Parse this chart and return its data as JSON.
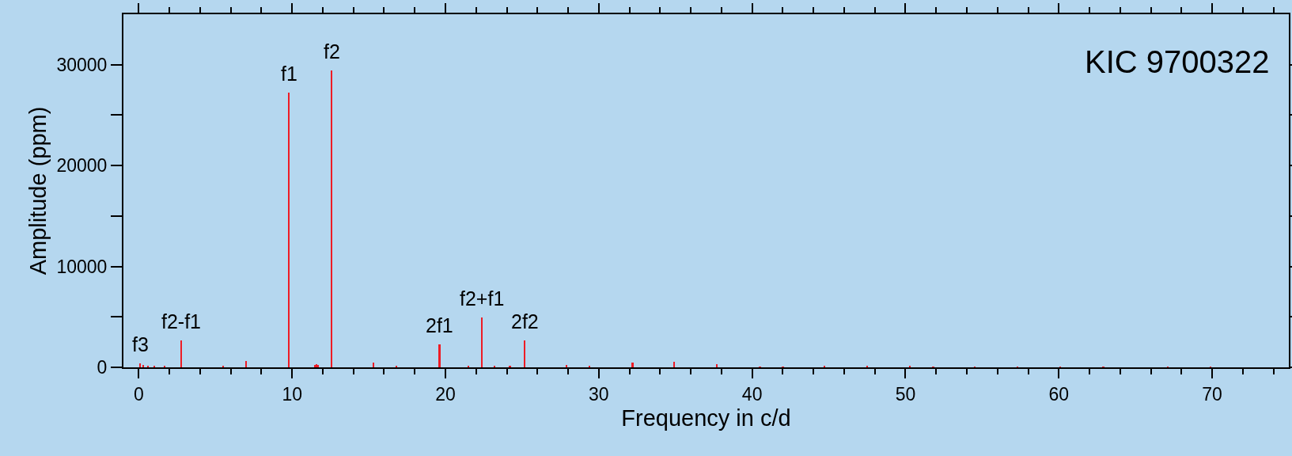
{
  "chart_data": {
    "type": "bar",
    "xlabel": "Frequency in c/d",
    "ylabel": "Amplitude (ppm)",
    "x": [
      0.1,
      0.3,
      0.6,
      1.0,
      1.7,
      2.76,
      5.5,
      7.0,
      9.79,
      11.5,
      11.6,
      11.7,
      12.58,
      15.3,
      16.8,
      19.62,
      21.5,
      22.38,
      23.2,
      24.2,
      25.17,
      27.9,
      29.4,
      32.2,
      34.9,
      37.7,
      40.5,
      42.0,
      44.7,
      47.5,
      50.3,
      51.8,
      54.5,
      57.3,
      60.1,
      62.9,
      67.1,
      69.9
    ],
    "series": [
      {
        "color": "#ee1c25",
        "values": [
          400,
          250,
          150,
          100,
          80,
          2640,
          100,
          600,
          27250,
          250,
          350,
          250,
          29450,
          500,
          100,
          2260,
          100,
          4920,
          100,
          150,
          2690,
          200,
          150,
          450,
          550,
          350,
          50,
          50,
          150,
          100,
          80,
          50,
          60,
          60,
          60,
          50,
          50,
          50
        ]
      }
    ],
    "xlim": [
      -1,
      75
    ],
    "xticks": [
      {
        "value": 0,
        "label": "0"
      },
      {
        "value": 2,
        "label": null
      },
      {
        "value": 4,
        "label": null
      },
      {
        "value": 6,
        "label": null
      },
      {
        "value": 8,
        "label": null
      },
      {
        "value": 10,
        "label": "10"
      },
      {
        "value": 12,
        "label": null
      },
      {
        "value": 14,
        "label": null
      },
      {
        "value": 16,
        "label": null
      },
      {
        "value": 18,
        "label": null
      },
      {
        "value": 20,
        "label": "20"
      },
      {
        "value": 22,
        "label": null
      },
      {
        "value": 24,
        "label": null
      },
      {
        "value": 26,
        "label": null
      },
      {
        "value": 28,
        "label": null
      },
      {
        "value": 30,
        "label": "30"
      },
      {
        "value": 32,
        "label": null
      },
      {
        "value": 34,
        "label": null
      },
      {
        "value": 36,
        "label": null
      },
      {
        "value": 38,
        "label": null
      },
      {
        "value": 40,
        "label": "40"
      },
      {
        "value": 42,
        "label": null
      },
      {
        "value": 44,
        "label": null
      },
      {
        "value": 46,
        "label": null
      },
      {
        "value": 48,
        "label": null
      },
      {
        "value": 50,
        "label": "50"
      },
      {
        "value": 52,
        "label": null
      },
      {
        "value": 54,
        "label": null
      },
      {
        "value": 56,
        "label": null
      },
      {
        "value": 58,
        "label": null
      },
      {
        "value": 60,
        "label": "60"
      },
      {
        "value": 62,
        "label": null
      },
      {
        "value": 64,
        "label": null
      },
      {
        "value": 66,
        "label": null
      },
      {
        "value": 68,
        "label": null
      },
      {
        "value": 70,
        "label": "70"
      },
      {
        "value": 72,
        "label": null
      },
      {
        "value": 74,
        "label": null
      }
    ],
    "ylim": [
      0,
      35000
    ],
    "yticks": [
      0,
      {
        "value": 5000,
        "label": null
      },
      10000,
      {
        "value": 15000,
        "label": null
      },
      20000,
      {
        "value": 25000,
        "label": null
      },
      30000
    ],
    "annotations": [
      {
        "text": "f3",
        "x": 0.1,
        "y": 400
      },
      {
        "text": "f2-f1",
        "x": 2.76,
        "y": 2640
      },
      {
        "text": "f1",
        "x": 9.79,
        "y": 27250
      },
      {
        "text": "f2",
        "x": 12.58,
        "y": 29450
      },
      {
        "text": "2f1",
        "x": 19.62,
        "y": 2260
      },
      {
        "text": "f2+f1",
        "x": 22.38,
        "y": 4920
      },
      {
        "text": "2f2",
        "x": 25.17,
        "y": 2690
      },
      "KIC 9700322"
    ]
  }
}
